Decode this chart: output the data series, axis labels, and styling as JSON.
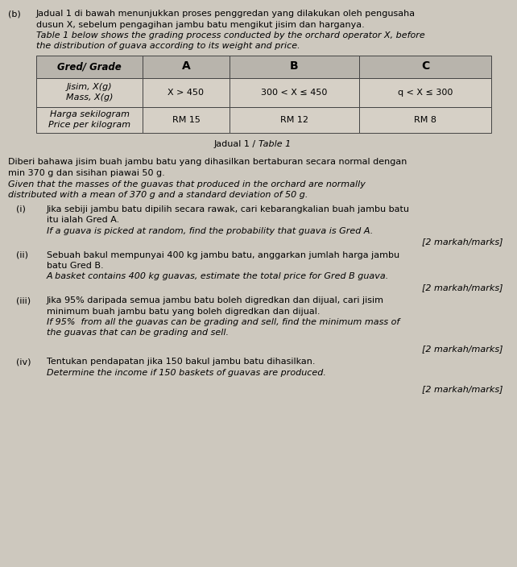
{
  "bg_color": "#cdc8be",
  "title_prefix": "(b)",
  "para_malay_line1": "Jadual 1 di bawah menunjukkan proses penggredan yang dilakukan oleh pengusaha",
  "para_malay_line2": "dusun X, sebelum pengagihan jambu batu mengikut jisim dan harganya.",
  "para_english_line1": "Table 1 below shows the grading process conducted by the orchard operator X, before",
  "para_english_line2": "the distribution of guava according to its weight and price.",
  "table_headers": [
    "Gred/ Grade",
    "A",
    "B",
    "C"
  ],
  "table_row1_label_malay": "Jisim, X(g)",
  "table_row1_label_english": "Mass, X(g)",
  "table_row1_data": [
    "X > 450",
    "300 < X ≤ 450",
    "q < X ≤ 300"
  ],
  "table_row2_label_malay": "Harga sekilogram",
  "table_row2_label_english": "Price per kilogram",
  "table_row2_data": [
    "RM 15",
    "RM 12",
    "RM 8"
  ],
  "table_caption": "Jadual 1 / Table 1",
  "table_caption_italic_part": "Table 1",
  "given_malay_line1": "Diberi bahawa jisim buah jambu batu yang dihasilkan bertaburan secara normal dengan",
  "given_malay_line2": "min 370 g dan sisihan piawai 50 g.",
  "given_english_line1": "Given that the masses of the guavas that produced in the orchard are normally",
  "given_english_line2": "distributed with a mean of 370 g and a standard deviation of 50 g.",
  "q_i_label": "(i)",
  "q_i_malay_line1": "Jika sebiji jambu batu dipilih secara rawak, cari kebarangkalian buah jambu batu",
  "q_i_malay_line2": "itu ialah Gred A.",
  "q_i_english": "If a guava is picked at random, find the probability that guava is Gred A.",
  "q_i_marks": "[2 markah/marks]",
  "q_ii_label": "(ii)",
  "q_ii_malay_line1": "Sebuah bakul mempunyai 400 kg jambu batu, anggarkan jumlah harga jambu",
  "q_ii_malay_line2": "batu Gred B.",
  "q_ii_english": "A basket contains 400 kg guavas, estimate the total price for Gred B guava.",
  "q_ii_marks": "[2 markah/marks]",
  "q_iii_label": "(iii)",
  "q_iii_malay_line1": "Jika 95% daripada semua jambu batu boleh digredkan dan dijual, cari jisim",
  "q_iii_malay_line2": "minimum buah jambu batu yang boleh digredkan dan dijual.",
  "q_iii_english_line1": "If 95%  from all the guavas can be grading and sell, find the minimum mass of",
  "q_iii_english_line2": "the guavas that can be grading and sell.",
  "q_iii_marks": "[2 markah/marks]",
  "q_iv_label": "(iv)",
  "q_iv_malay": "Tentukan pendapatan jika 150 bakul jambu batu dihasilkan.",
  "q_iv_english": "Determine the income if 150 baskets of guavas are produced.",
  "q_iv_marks": "[2 markah/marks]"
}
